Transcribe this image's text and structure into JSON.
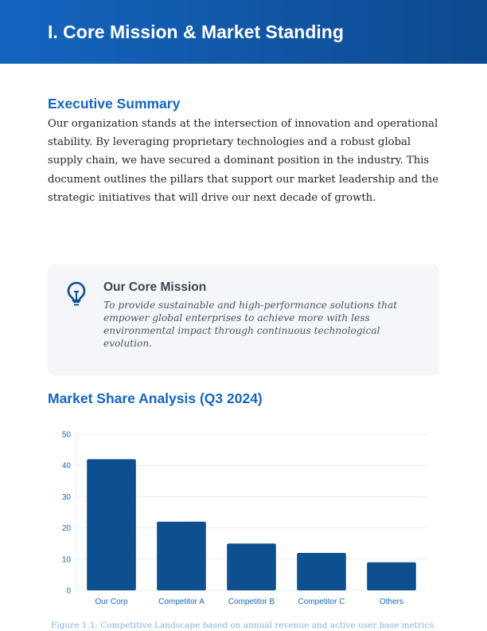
{
  "header": {
    "title": "I. Core Mission & Market Standing"
  },
  "summary": {
    "heading": "Executive Summary",
    "text": "Our organization stands at the intersection of innovation and operational stability. By leveraging proprietary technologies and a robust global supply chain, we have secured a dominant position in the industry. This document outlines the pillars that support our market leadership and the strategic initiatives that will drive our next decade of growth."
  },
  "mission": {
    "icon": "lightbulb-icon",
    "title": "Our Core Mission",
    "text": "To provide sustainable and high-performance solutions that empower global enterprises to achieve more with less environmental impact through continuous technological evolution."
  },
  "market": {
    "heading": "Market Share Analysis (Q3 2024)",
    "caption": "Figure 1.1: Competitive Landscape based on annual revenue and active user base metrics."
  },
  "chart_data": {
    "type": "bar",
    "categories": [
      "Our Corp",
      "Competitor A",
      "Competitor B",
      "Competitor C",
      "Others"
    ],
    "values": [
      42,
      22,
      15,
      12,
      9
    ],
    "ylim": [
      0,
      50
    ],
    "yticks": [
      0,
      10,
      20,
      30,
      40,
      50
    ],
    "grid": true,
    "bar_color": "#0d4f8f",
    "tick_color": "#1565c0"
  }
}
